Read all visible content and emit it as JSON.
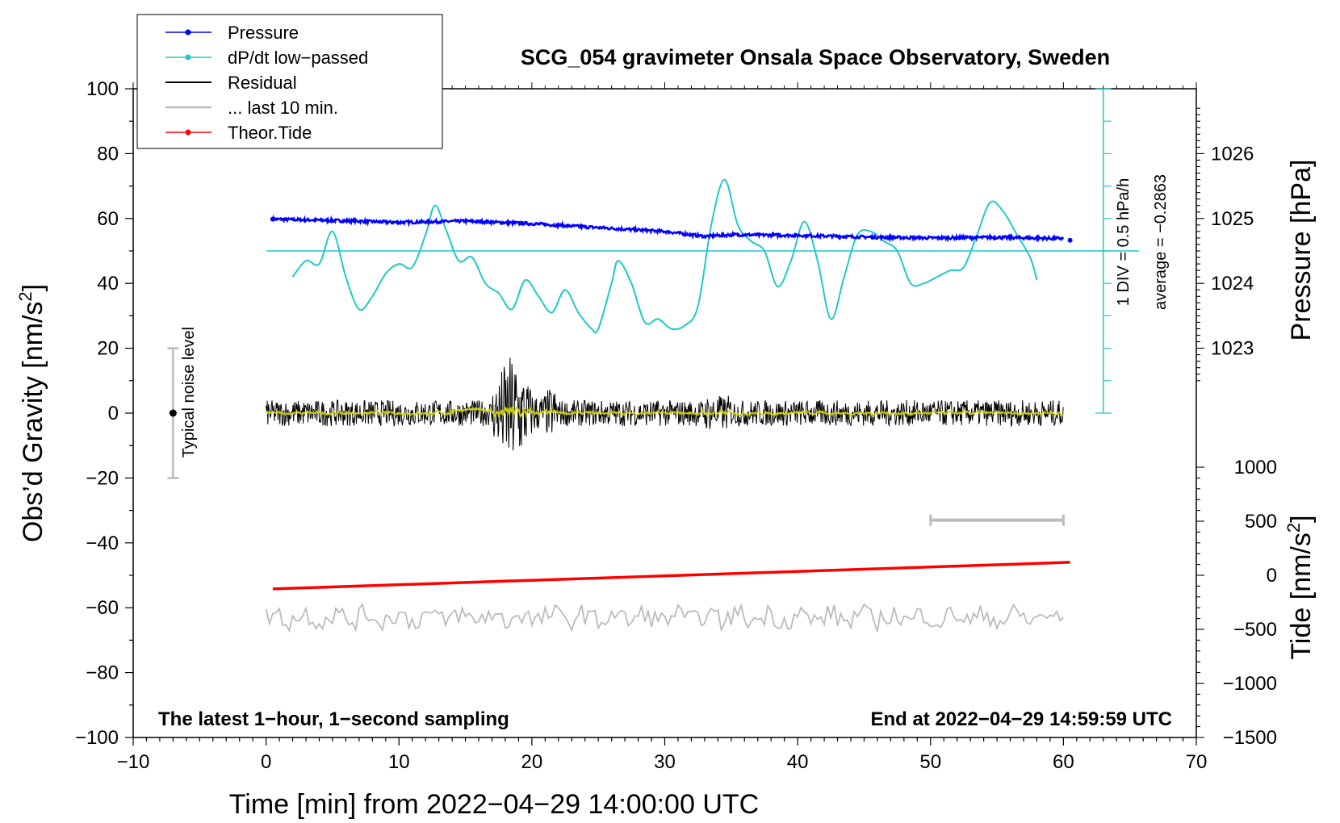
{
  "chart_data": {
    "type": "line",
    "title": "SCG_054 gravimeter Onsala Space Observatory, Sweden",
    "xlabel": "Time [min] from 2022−04−29 14:00:00 UTC",
    "ylabel_left": "Obs’d Gravity [nm/s",
    "ylabel_left_sup": "2",
    "ylabel_left_close": "]",
    "ylabel_pressure": "Pressure [hPa]",
    "ylabel_tide": "Tide [nm/s",
    "ylabel_tide_sup": "2",
    "ylabel_tide_close": "]",
    "xlim": [
      -10,
      70
    ],
    "ylim": [
      -100,
      100
    ],
    "x_ticks": [
      "−10",
      "0",
      "10",
      "20",
      "30",
      "40",
      "50",
      "60",
      "70"
    ],
    "x_tick_values": [
      -10,
      0,
      10,
      20,
      30,
      40,
      50,
      60,
      70
    ],
    "y_ticks": [
      "100",
      "80",
      "60",
      "40",
      "20",
      "0",
      "−20",
      "−40",
      "−60",
      "−80",
      "−100"
    ],
    "y_tick_values": [
      100,
      80,
      60,
      40,
      20,
      0,
      -20,
      -40,
      -60,
      -80,
      -100
    ],
    "pressure_ticks": [
      "1026",
      "1025",
      "1024",
      "1023"
    ],
    "pressure_tick_values": [
      1026,
      1025,
      1024,
      1023
    ],
    "pressure_axis_map": {
      "hpa_ref": 1025,
      "y_at_ref": 60,
      "y_per_hpa": 20
    },
    "tide_ticks": [
      "1000",
      "500",
      "0",
      "−500",
      "−1000",
      "−1500"
    ],
    "tide_tick_values": [
      1000,
      500,
      0,
      -500,
      -1000,
      -1500
    ],
    "tide_axis_map": {
      "tide_ref": 0,
      "y_at_ref": -50,
      "y_per_tide": 0.03333
    },
    "series": [
      {
        "name": "Pressure",
        "color": "#0000ff",
        "x": [
          0.5,
          5,
          10,
          15,
          20,
          25,
          30,
          33,
          35,
          40,
          45,
          50,
          55,
          60
        ],
        "values": [
          59.8,
          59.4,
          58.8,
          59.2,
          58.4,
          57.2,
          56.0,
          54.5,
          55.0,
          54.8,
          54.3,
          54.0,
          54.2,
          53.8
        ]
      },
      {
        "name": "dP/dt low−passed",
        "color": "#20c8c8",
        "x": [
          2,
          3,
          4,
          5,
          6,
          7,
          8,
          9,
          10,
          11,
          12,
          12.7,
          13.5,
          14.5,
          15.5,
          16.5,
          17.5,
          18.5,
          19.5,
          20.5,
          21.5,
          22.5,
          23.5,
          24.5,
          25,
          26,
          26.5,
          27.5,
          28.5,
          29.5,
          30.5,
          31.5,
          32.5,
          33.5,
          34.5,
          35.5,
          36.5,
          37.5,
          38.5,
          39.5,
          40.5,
          41.5,
          42.5,
          43.5,
          44.5,
          45.5,
          46.5,
          47.5,
          48.5,
          49.5,
          50.5,
          51.5,
          52.5,
          53.5,
          54.5,
          55.5,
          56.5,
          57.5,
          58
        ],
        "values": [
          42,
          47,
          46,
          56,
          42,
          32,
          36,
          43,
          46,
          45,
          55,
          64,
          57,
          47,
          48,
          40,
          37,
          32,
          41,
          36,
          31,
          38,
          31,
          26,
          26,
          40,
          47,
          40,
          28,
          29,
          26,
          27,
          33,
          58,
          72,
          58,
          53,
          50,
          39,
          47,
          59,
          47,
          29,
          42,
          55,
          56,
          53,
          50,
          40,
          40,
          42,
          44,
          45,
          55,
          65,
          62,
          55,
          48,
          41
        ]
      },
      {
        "name": "Residual",
        "color": "#000000"
      },
      {
        "name": "... last 10 min.",
        "color": "#bbbbbb"
      },
      {
        "name": "Theor.Tide",
        "color": "#ff0000",
        "x": [
          0.5,
          60.5
        ],
        "values": [
          -54.2,
          -46.0
        ]
      }
    ],
    "reference_line_y": 50,
    "residual_range_x": [
      0,
      60
    ],
    "residual_burst_x": [
      17,
      22
    ],
    "last10_line_y": -63,
    "noise_bar": {
      "x": -7,
      "y_from": -20,
      "y_to": 20,
      "center": 0
    },
    "bracket": {
      "x_from": 50,
      "x_to": 60,
      "y": -33
    },
    "pressure_scale": {
      "x": 63,
      "y_from": 0,
      "y_to": 100
    },
    "annotations": {
      "noise_label": "Typical noise level",
      "scale_div": "1 DIV = 0.5 hPa/h",
      "scale_avg": "average = −0.2863",
      "bottom_left": "The latest 1−hour, 1−second sampling",
      "bottom_right": "End at 2022−04−29 14:59:59 UTC"
    },
    "legend": [
      {
        "label": "Pressure",
        "color": "#0000ff",
        "marker": true
      },
      {
        "label": "dP/dt low−passed",
        "color": "#20c8c8",
        "marker": true
      },
      {
        "label": "Residual",
        "color": "#000000",
        "marker": false
      },
      {
        "label": "... last 10 min.",
        "color": "#bbbbbb",
        "marker": false
      },
      {
        "label": "Theor.Tide",
        "color": "#ff0000",
        "marker": true
      }
    ],
    "legend_position": "top-left",
    "colors": {
      "pressure": "#0000ff",
      "dpdt": "#20c8c8",
      "residual": "#000000",
      "residual_smooth": "#cccc00",
      "last10": "#bbbbbb",
      "tide": "#ff0000",
      "noise_bar": "#bbbbbb"
    }
  }
}
